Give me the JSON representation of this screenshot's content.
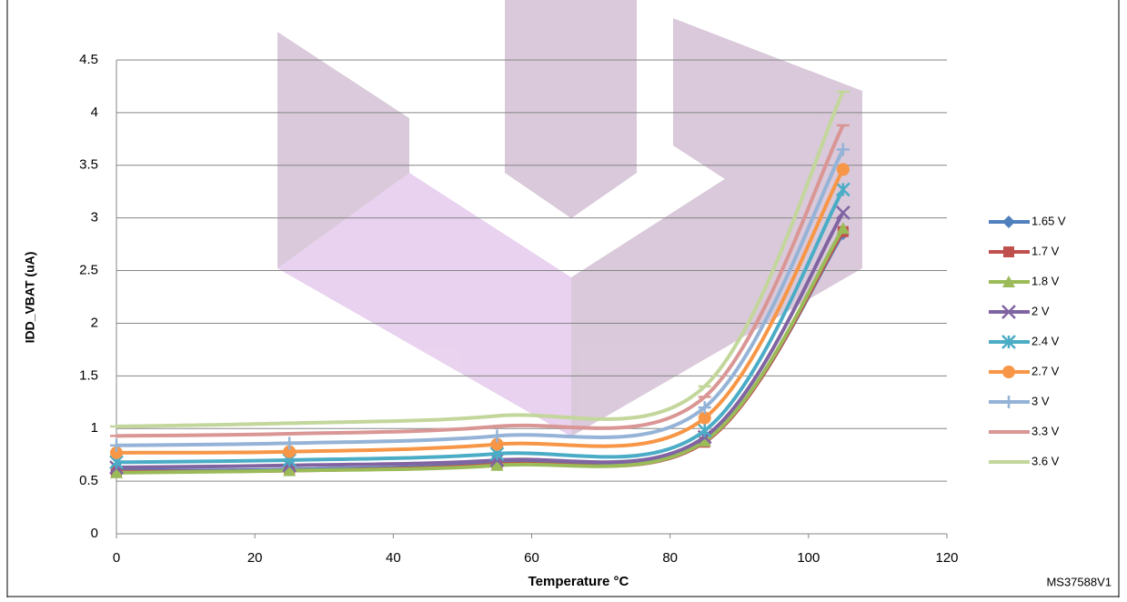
{
  "chart_data": {
    "type": "line",
    "x_label": "Temperature °C",
    "y_label": "IDD_VBAT (uA)",
    "footnote": "MS37588V1",
    "x": [
      0,
      25,
      55,
      85,
      105
    ],
    "xlim": [
      0,
      120
    ],
    "xticks": [
      0,
      20,
      40,
      60,
      80,
      100,
      120
    ],
    "ylim": [
      0,
      4.5
    ],
    "yticks": [
      0,
      0.5,
      1,
      1.5,
      2,
      2.5,
      3,
      3.5,
      4,
      4.5
    ],
    "grid": true,
    "smooth": true,
    "legend": "right",
    "series": [
      {
        "name": "1.65 V",
        "color": "#4f81bd",
        "marker": "diamond",
        "values": [
          0.6,
          0.61,
          0.67,
          0.88,
          2.85
        ]
      },
      {
        "name": "1.7 V",
        "color": "#c0504d",
        "marker": "square",
        "values": [
          0.59,
          0.6,
          0.66,
          0.87,
          2.87
        ]
      },
      {
        "name": "1.8 V",
        "color": "#9bbb59",
        "marker": "triangle",
        "values": [
          0.58,
          0.6,
          0.65,
          0.88,
          2.9
        ]
      },
      {
        "name": "2 V",
        "color": "#8064a2",
        "marker": "x",
        "values": [
          0.63,
          0.65,
          0.7,
          0.92,
          3.05
        ]
      },
      {
        "name": "2.4 V",
        "color": "#4bacc6",
        "marker": "star",
        "values": [
          0.68,
          0.7,
          0.76,
          0.98,
          3.27
        ]
      },
      {
        "name": "2.7 V",
        "color": "#f79646",
        "marker": "circle",
        "values": [
          0.77,
          0.78,
          0.85,
          1.1,
          3.46
        ]
      },
      {
        "name": "3 V",
        "color": "#95b3d7",
        "marker": "plus",
        "values": [
          0.84,
          0.86,
          0.93,
          1.2,
          3.65
        ]
      },
      {
        "name": "3.3 V",
        "color": "#d99694",
        "marker": "dash",
        "values": [
          0.93,
          0.95,
          1.02,
          1.3,
          3.88
        ]
      },
      {
        "name": "3.6 V",
        "color": "#c3d69b",
        "marker": "dash",
        "values": [
          1.02,
          1.05,
          1.12,
          1.4,
          4.2
        ]
      }
    ]
  }
}
